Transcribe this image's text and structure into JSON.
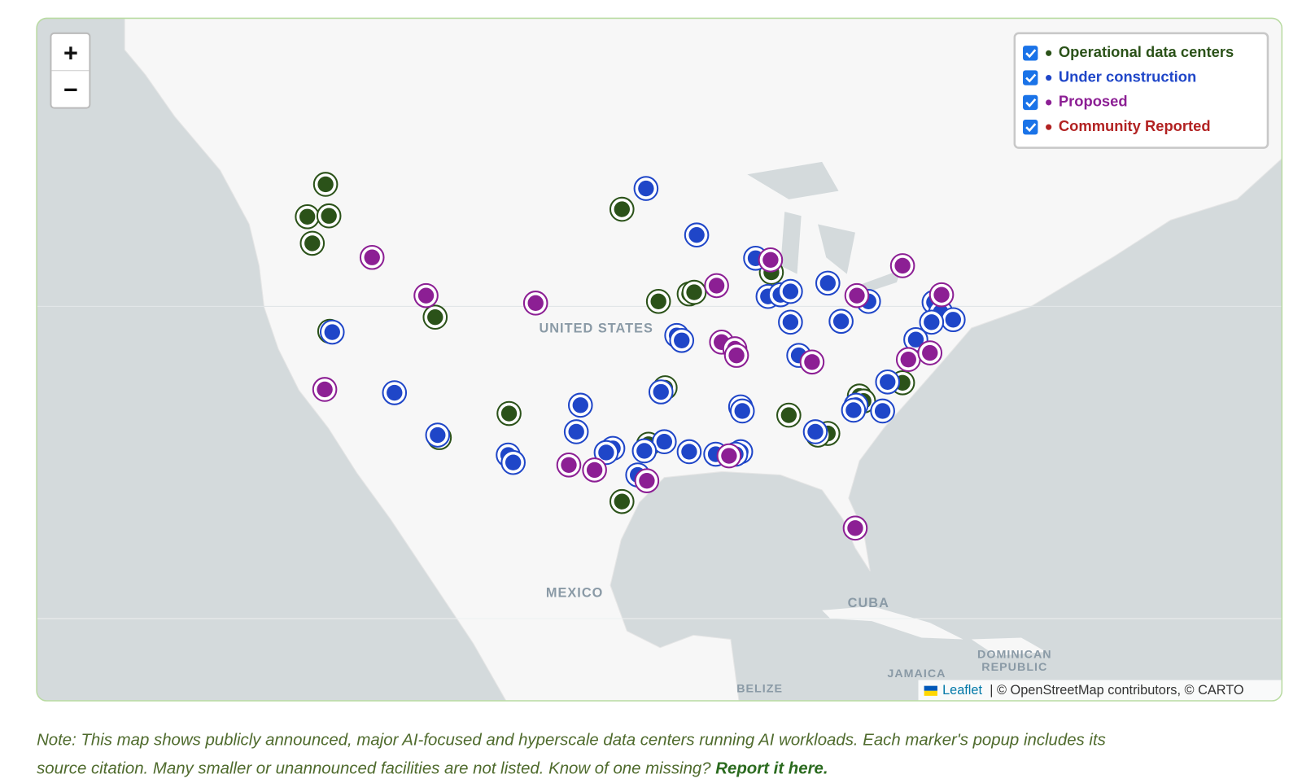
{
  "zoom": {
    "in": "+",
    "out": "−"
  },
  "legend": [
    {
      "label": "Operational data centers",
      "color": "#2b5219"
    },
    {
      "label": "Under construction",
      "color": "#1f46c8"
    },
    {
      "label": "Proposed",
      "color": "#8c1f94"
    },
    {
      "label": "Community Reported",
      "color": "#b22222"
    }
  ],
  "map_labels": {
    "us": "UNITED STATES",
    "mexico": "MEXICO",
    "cuba": "CUBA",
    "dominican": [
      "DOMINICAN",
      "REPUBLIC"
    ],
    "jamaica": "JAMAICA",
    "belize": "BELIZE"
  },
  "attribution": {
    "leaflet": "Leaflet",
    "rest": "| © OpenStreetMap contributors, © CARTO"
  },
  "note": {
    "line1": "Note: This map shows publicly announced, major AI-focused and hyperscale data centers running AI workloads. Each marker's popup includes its",
    "line2": "source citation. Many smaller or unannounced facilities are not listed. Know of one missing?",
    "link": "Report it here."
  }
}
